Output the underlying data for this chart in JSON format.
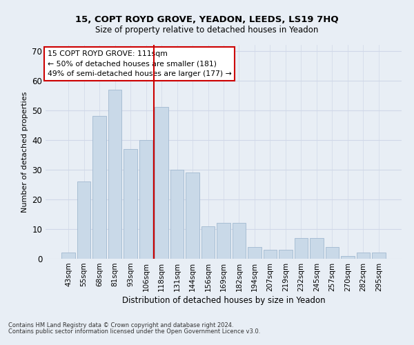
{
  "title1": "15, COPT ROYD GROVE, YEADON, LEEDS, LS19 7HQ",
  "title2": "Size of property relative to detached houses in Yeadon",
  "xlabel": "Distribution of detached houses by size in Yeadon",
  "ylabel": "Number of detached properties",
  "categories": [
    "43sqm",
    "55sqm",
    "68sqm",
    "81sqm",
    "93sqm",
    "106sqm",
    "118sqm",
    "131sqm",
    "144sqm",
    "156sqm",
    "169sqm",
    "182sqm",
    "194sqm",
    "207sqm",
    "219sqm",
    "232sqm",
    "245sqm",
    "257sqm",
    "270sqm",
    "282sqm",
    "295sqm"
  ],
  "values": [
    2,
    26,
    48,
    57,
    37,
    40,
    51,
    30,
    29,
    11,
    12,
    12,
    4,
    3,
    3,
    7,
    7,
    4,
    1,
    2,
    2
  ],
  "bar_color": "#c9d9e8",
  "bar_edge_color": "#a0b8d0",
  "grid_color": "#d0d8e8",
  "vline_x": 5.5,
  "vline_color": "#cc0000",
  "annotation_text": "15 COPT ROYD GROVE: 111sqm\n← 50% of detached houses are smaller (181)\n49% of semi-detached houses are larger (177) →",
  "annotation_box_color": "#ffffff",
  "annotation_box_edge": "#cc0000",
  "ylim": [
    0,
    72
  ],
  "yticks": [
    0,
    10,
    20,
    30,
    40,
    50,
    60,
    70
  ],
  "footer1": "Contains HM Land Registry data © Crown copyright and database right 2024.",
  "footer2": "Contains public sector information licensed under the Open Government Licence v3.0.",
  "bg_color": "#e8eef5",
  "title1_fontsize": 9.5,
  "title2_fontsize": 8.5,
  "xlabel_fontsize": 8.5,
  "ylabel_fontsize": 8.0,
  "tick_fontsize": 7.5,
  "ytick_fontsize": 8.5,
  "annotation_fontsize": 7.8,
  "footer_fontsize": 6.0
}
